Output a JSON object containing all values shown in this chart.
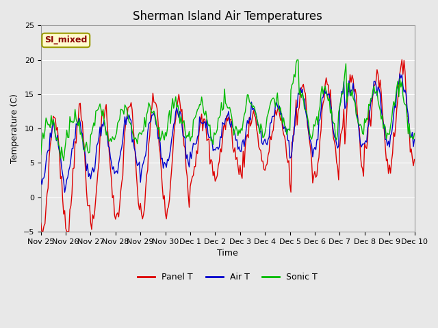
{
  "title": "Sherman Island Air Temperatures",
  "xlabel": "Time",
  "ylabel": "Temperature (C)",
  "ylim": [
    -5,
    25
  ],
  "xlim": [
    0,
    360
  ],
  "tick_labels": [
    "Nov 25",
    "Nov 26",
    "Nov 27",
    "Nov 28",
    "Nov 29",
    "Nov 30",
    "Dec 1",
    "Dec 2",
    "Dec 3",
    "Dec 4",
    "Dec 5",
    "Dec 6",
    "Dec 7",
    "Dec 8",
    "Dec 9",
    "Dec 10"
  ],
  "tick_positions": [
    0,
    24,
    48,
    72,
    96,
    120,
    144,
    168,
    192,
    216,
    240,
    264,
    288,
    312,
    336,
    360
  ],
  "annotation_text": "SI_mixed",
  "annotation_color": "#8B0000",
  "annotation_bg": "#FFFACD",
  "annotation_edge": "#999900",
  "fig_bg": "#E8E8E8",
  "plot_bg": "#E8E8E8",
  "panel_T_color": "#DD0000",
  "air_T_color": "#0000CC",
  "sonic_T_color": "#00BB00",
  "line_width": 1.0,
  "legend_labels": [
    "Panel T",
    "Air T",
    "Sonic T"
  ],
  "legend_colors": [
    "#DD0000",
    "#0000CC",
    "#00BB00"
  ],
  "title_fontsize": 12,
  "axis_fontsize": 9,
  "tick_fontsize": 8,
  "grid_color": "#FFFFFF",
  "yticks": [
    -5,
    0,
    5,
    10,
    15,
    20,
    25
  ]
}
